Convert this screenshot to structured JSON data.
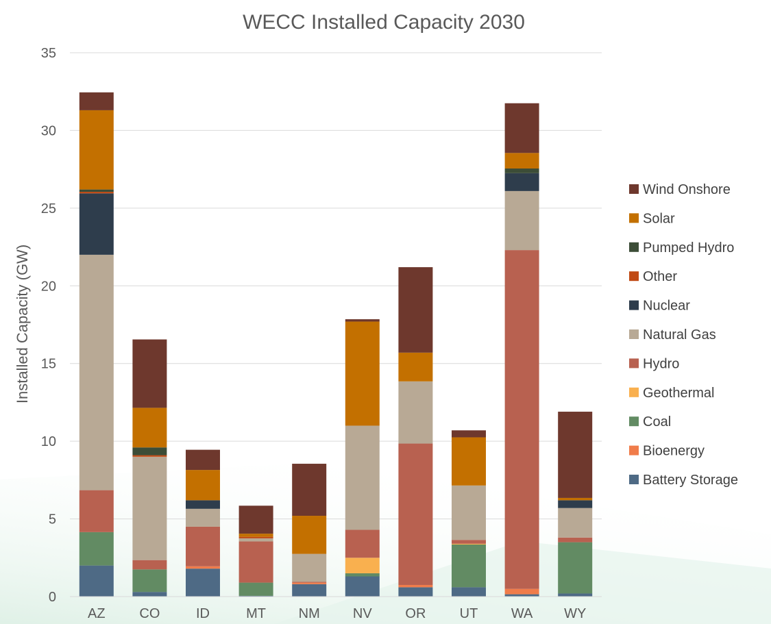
{
  "chart_data": {
    "type": "bar",
    "stacked": true,
    "title": "WECC Installed Capacity 2030",
    "xlabel": "",
    "ylabel": "Installed Capacity (GW)",
    "ylim": [
      0,
      35
    ],
    "yticks": [
      0,
      5,
      10,
      15,
      20,
      25,
      30,
      35
    ],
    "grid": true,
    "legend_position": "right",
    "categories": [
      "AZ",
      "CO",
      "ID",
      "MT",
      "NM",
      "NV",
      "OR",
      "UT",
      "WA",
      "WY"
    ],
    "series": [
      {
        "name": "Battery Storage",
        "color": "#4e6a85",
        "values": [
          2.0,
          0.3,
          1.8,
          0.05,
          0.8,
          1.3,
          0.6,
          0.6,
          0.15,
          0.2
        ]
      },
      {
        "name": "Bioenergy",
        "color": "#f07c4a",
        "values": [
          0.0,
          0.0,
          0.15,
          0.0,
          0.1,
          0.0,
          0.15,
          0.0,
          0.35,
          0.0
        ]
      },
      {
        "name": "Coal",
        "color": "#628b63",
        "values": [
          2.15,
          1.45,
          0.0,
          0.85,
          0.0,
          0.2,
          0.0,
          2.75,
          0.0,
          3.3
        ]
      },
      {
        "name": "Geothermal",
        "color": "#f9b04f",
        "values": [
          0.0,
          0.0,
          0.0,
          0.0,
          0.0,
          1.0,
          0.0,
          0.05,
          0.0,
          0.0
        ]
      },
      {
        "name": "Hydro",
        "color": "#b86150",
        "values": [
          2.7,
          0.6,
          2.55,
          2.65,
          0.05,
          1.8,
          9.1,
          0.25,
          21.8,
          0.3
        ]
      },
      {
        "name": "Natural Gas",
        "color": "#b8a995",
        "values": [
          15.15,
          6.65,
          1.15,
          0.2,
          1.8,
          6.7,
          4.0,
          3.5,
          3.8,
          1.9
        ]
      },
      {
        "name": "Nuclear",
        "color": "#2e3d4c",
        "values": [
          3.95,
          0.0,
          0.55,
          0.0,
          0.0,
          0.0,
          0.0,
          0.0,
          1.15,
          0.5
        ]
      },
      {
        "name": "Other",
        "color": "#c04a14",
        "values": [
          0.1,
          0.1,
          0.0,
          0.1,
          0.0,
          0.0,
          0.0,
          0.0,
          0.0,
          0.0
        ]
      },
      {
        "name": "Pumped Hydro",
        "color": "#3c4d37",
        "values": [
          0.15,
          0.5,
          0.0,
          0.0,
          0.0,
          0.0,
          0.0,
          0.0,
          0.3,
          0.0
        ]
      },
      {
        "name": "Solar",
        "color": "#c37000",
        "values": [
          5.1,
          2.55,
          1.95,
          0.2,
          2.45,
          6.7,
          1.85,
          3.1,
          1.0,
          0.15
        ]
      },
      {
        "name": "Wind Onshore",
        "color": "#6e382d",
        "values": [
          1.15,
          4.4,
          1.3,
          1.8,
          3.35,
          0.15,
          5.5,
          0.45,
          3.2,
          5.55
        ]
      }
    ]
  }
}
